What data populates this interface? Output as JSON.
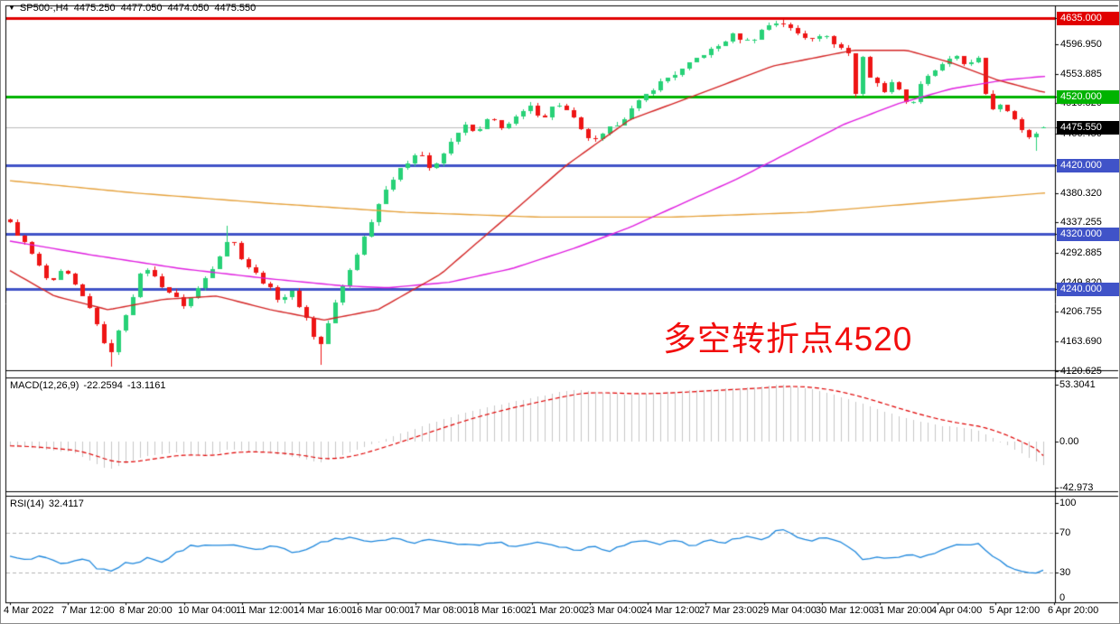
{
  "header": {
    "dropdown_icon": "▼",
    "symbol": "SP500-,H4",
    "open": "4475.250",
    "high": "4477.050",
    "low": "4474.050",
    "close": "4475.550"
  },
  "annotation": {
    "text": "多空转折点4520",
    "color": "#f20d0d"
  },
  "indicators": {
    "macd": {
      "label": "MACD(12,26,9)",
      "value_main": "-22.2594",
      "value_signal": "-13.1161",
      "axis_ticks": [
        {
          "label": "53.3041",
          "value": 53.3041
        },
        {
          "label": "0.00",
          "value": 0
        },
        {
          "label": "-42.973",
          "value": -42.973
        }
      ]
    },
    "rsi": {
      "label": "RSI(14)",
      "value": "32.4117",
      "axis_ticks": [
        {
          "label": "100",
          "value": 100
        },
        {
          "label": "70",
          "value": 70
        },
        {
          "label": "30",
          "value": 30
        },
        {
          "label": "0",
          "value": 0
        }
      ],
      "dashed_levels": [
        70,
        30
      ]
    }
  },
  "price_axis": {
    "ticks": [
      {
        "label": "4596.950",
        "value": 4596.95
      },
      {
        "label": "4553.885",
        "value": 4553.885
      },
      {
        "label": "4510.820",
        "value": 4510.82
      },
      {
        "label": "4466.450",
        "value": 4466.45
      },
      {
        "label": "4380.320",
        "value": 4380.32
      },
      {
        "label": "4337.255",
        "value": 4337.255
      },
      {
        "label": "4292.885",
        "value": 4292.885
      },
      {
        "label": "4249.820",
        "value": 4249.82
      },
      {
        "label": "4206.755",
        "value": 4206.755
      },
      {
        "label": "4163.690",
        "value": 4163.69
      },
      {
        "label": "4120.625",
        "value": 4120.625
      }
    ],
    "badges": [
      {
        "label": "4635.000",
        "value": 4635.0,
        "color": "#e10000"
      },
      {
        "label": "4520.000",
        "value": 4520.0,
        "color": "#00b300"
      },
      {
        "label": "4475.550",
        "value": 4475.55,
        "color": "#000000"
      },
      {
        "label": "4420.000",
        "value": 4420.0,
        "color": "#4053c8"
      },
      {
        "label": "4320.000",
        "value": 4320.0,
        "color": "#4053c8"
      },
      {
        "label": "4240.000",
        "value": 4240.0,
        "color": "#4053c8"
      }
    ]
  },
  "time_axis": {
    "labels": [
      "4 Mar 2022",
      "7 Mar 12:00",
      "8 Mar 20:00",
      "10 Mar 04:00",
      "11 Mar 12:00",
      "14 Mar 16:00",
      "16 Mar 00:00",
      "17 Mar 08:00",
      "18 Mar 16:00",
      "21 Mar 20:00",
      "23 Mar 04:00",
      "24 Mar 12:00",
      "27 Mar 23:00",
      "29 Mar 04:00",
      "30 Mar 12:00",
      "31 Mar 20:00",
      "4 Apr 04:00",
      "5 Apr 12:00",
      "6 Apr 20:00"
    ]
  },
  "chart_data": {
    "type": "candlestick",
    "symbol": "SP500-",
    "timeframe": "H4",
    "n_bars": 144,
    "y_range": [
      4120.625,
      4635.0
    ],
    "current_bar": {
      "open": 4475.25,
      "high": 4477.05,
      "low": 4474.05,
      "close": 4475.55
    },
    "horizontal_lines": [
      {
        "value": 4635.0,
        "color": "#e10000",
        "width": 3
      },
      {
        "value": 4520.0,
        "color": "#00b300",
        "width": 3
      },
      {
        "value": 4420.0,
        "color": "#4053c8",
        "width": 3
      },
      {
        "value": 4320.0,
        "color": "#4053c8",
        "width": 3
      },
      {
        "value": 4240.0,
        "color": "#4053c8",
        "width": 3
      },
      {
        "value": 4475.55,
        "color": "#bbbbbb",
        "width": 1
      }
    ],
    "price_path": [
      [
        0.0,
        4335
      ],
      [
        0.017,
        4300
      ],
      [
        0.039,
        4245
      ],
      [
        0.052,
        4270
      ],
      [
        0.069,
        4230
      ],
      [
        0.082,
        4200
      ],
      [
        0.095,
        4140
      ],
      [
        0.108,
        4190
      ],
      [
        0.13,
        4275
      ],
      [
        0.147,
        4245
      ],
      [
        0.169,
        4215
      ],
      [
        0.191,
        4260
      ],
      [
        0.213,
        4318
      ],
      [
        0.226,
        4280
      ],
      [
        0.243,
        4255
      ],
      [
        0.26,
        4225
      ],
      [
        0.273,
        4235
      ],
      [
        0.286,
        4200
      ],
      [
        0.299,
        4152
      ],
      [
        0.312,
        4210
      ],
      [
        0.325,
        4255
      ],
      [
        0.338,
        4300
      ],
      [
        0.351,
        4345
      ],
      [
        0.364,
        4390
      ],
      [
        0.382,
        4420
      ],
      [
        0.395,
        4445
      ],
      [
        0.408,
        4410
      ],
      [
        0.425,
        4450
      ],
      [
        0.438,
        4480
      ],
      [
        0.451,
        4465
      ],
      [
        0.464,
        4490
      ],
      [
        0.477,
        4475
      ],
      [
        0.49,
        4490
      ],
      [
        0.503,
        4505
      ],
      [
        0.516,
        4490
      ],
      [
        0.529,
        4512
      ],
      [
        0.542,
        4495
      ],
      [
        0.555,
        4465
      ],
      [
        0.568,
        4455
      ],
      [
        0.581,
        4475
      ],
      [
        0.594,
        4490
      ],
      [
        0.607,
        4510
      ],
      [
        0.62,
        4530
      ],
      [
        0.633,
        4545
      ],
      [
        0.651,
        4560
      ],
      [
        0.668,
        4580
      ],
      [
        0.686,
        4595
      ],
      [
        0.699,
        4610
      ],
      [
        0.716,
        4600
      ],
      [
        0.733,
        4625
      ],
      [
        0.746,
        4630
      ],
      [
        0.759,
        4615
      ],
      [
        0.772,
        4605
      ],
      [
        0.785,
        4612
      ],
      [
        0.798,
        4598
      ],
      [
        0.811,
        4585
      ],
      [
        0.818,
        4522
      ],
      [
        0.824,
        4586
      ],
      [
        0.833,
        4545
      ],
      [
        0.846,
        4530
      ],
      [
        0.857,
        4545
      ],
      [
        0.866,
        4515
      ],
      [
        0.872,
        4505
      ],
      [
        0.881,
        4540
      ],
      [
        0.894,
        4555
      ],
      [
        0.904,
        4572
      ],
      [
        0.916,
        4576
      ],
      [
        0.926,
        4565
      ],
      [
        0.936,
        4585
      ],
      [
        0.941,
        4535
      ],
      [
        0.949,
        4500
      ],
      [
        0.956,
        4512
      ],
      [
        0.963,
        4505
      ],
      [
        0.97,
        4495
      ],
      [
        0.977,
        4480
      ],
      [
        0.983,
        4455
      ],
      [
        0.99,
        4465
      ],
      [
        0.996,
        4470
      ],
      [
        1.0,
        4475.55
      ]
    ],
    "wick_spikes": [
      {
        "f": 0.095,
        "low": 4128
      },
      {
        "f": 0.213,
        "high": 4332
      },
      {
        "f": 0.299,
        "low": 4130
      },
      {
        "f": 0.746,
        "high": 4633
      },
      {
        "f": 0.99,
        "low": 4441
      }
    ],
    "moving_averages": [
      {
        "name": "ma-slow-orange",
        "color": "#e6a23c",
        "path": [
          [
            0,
            4398
          ],
          [
            0.122,
            4380
          ],
          [
            0.252,
            4365
          ],
          [
            0.382,
            4352
          ],
          [
            0.512,
            4345
          ],
          [
            0.642,
            4345
          ],
          [
            0.773,
            4352
          ],
          [
            0.903,
            4368
          ],
          [
            1,
            4380
          ]
        ]
      },
      {
        "name": "ma-mid-magenta",
        "color": "#e01fe0",
        "path": [
          [
            0,
            4310
          ],
          [
            0.078,
            4290
          ],
          [
            0.165,
            4270
          ],
          [
            0.252,
            4255
          ],
          [
            0.321,
            4245
          ],
          [
            0.365,
            4242
          ],
          [
            0.425,
            4250
          ],
          [
            0.486,
            4270
          ],
          [
            0.547,
            4300
          ],
          [
            0.6,
            4330
          ],
          [
            0.651,
            4365
          ],
          [
            0.703,
            4400
          ],
          [
            0.755,
            4440
          ],
          [
            0.807,
            4480
          ],
          [
            0.859,
            4510
          ],
          [
            0.911,
            4532
          ],
          [
            0.964,
            4545
          ],
          [
            1,
            4550
          ]
        ]
      },
      {
        "name": "ma-fast-red",
        "color": "#d42525",
        "path": [
          [
            0,
            4267
          ],
          [
            0.043,
            4230
          ],
          [
            0.095,
            4210
          ],
          [
            0.148,
            4225
          ],
          [
            0.2,
            4230
          ],
          [
            0.252,
            4210
          ],
          [
            0.304,
            4195
          ],
          [
            0.356,
            4210
          ],
          [
            0.417,
            4262
          ],
          [
            0.477,
            4340
          ],
          [
            0.538,
            4420
          ],
          [
            0.6,
            4487
          ],
          [
            0.668,
            4525
          ],
          [
            0.738,
            4565
          ],
          [
            0.816,
            4588
          ],
          [
            0.868,
            4588
          ],
          [
            0.911,
            4570
          ],
          [
            0.955,
            4545
          ],
          [
            1,
            4527
          ]
        ]
      }
    ],
    "macd": {
      "hist_path": [
        [
          0,
          -4
        ],
        [
          0.06,
          -10
        ],
        [
          0.095,
          -26
        ],
        [
          0.13,
          -14
        ],
        [
          0.16,
          -10
        ],
        [
          0.19,
          -14
        ],
        [
          0.213,
          -7
        ],
        [
          0.25,
          -11
        ],
        [
          0.28,
          -15
        ],
        [
          0.299,
          -20
        ],
        [
          0.33,
          -10
        ],
        [
          0.35,
          -2
        ],
        [
          0.38,
          8
        ],
        [
          0.41,
          18
        ],
        [
          0.44,
          27
        ],
        [
          0.47,
          34
        ],
        [
          0.5,
          40
        ],
        [
          0.53,
          46
        ],
        [
          0.55,
          49
        ],
        [
          0.57,
          46
        ],
        [
          0.6,
          44
        ],
        [
          0.63,
          46
        ],
        [
          0.66,
          48
        ],
        [
          0.7,
          50
        ],
        [
          0.72,
          51
        ],
        [
          0.746,
          53.3
        ],
        [
          0.77,
          50
        ],
        [
          0.79,
          46
        ],
        [
          0.81,
          40
        ],
        [
          0.823,
          36
        ],
        [
          0.84,
          30
        ],
        [
          0.86,
          24
        ],
        [
          0.88,
          19
        ],
        [
          0.9,
          15
        ],
        [
          0.92,
          13
        ],
        [
          0.936,
          11
        ],
        [
          0.95,
          4
        ],
        [
          0.963,
          -2
        ],
        [
          0.975,
          -9
        ],
        [
          0.99,
          -17
        ],
        [
          1.0,
          -22.26
        ]
      ],
      "final_macd": -22.2594,
      "final_signal": -13.1161,
      "y_max": 53.3041,
      "y_min": -42.973
    },
    "rsi": {
      "path": [
        [
          0,
          46
        ],
        [
          0.012,
          42
        ],
        [
          0.03,
          46
        ],
        [
          0.045,
          40
        ],
        [
          0.06,
          41
        ],
        [
          0.075,
          43
        ],
        [
          0.085,
          34
        ],
        [
          0.1,
          31
        ],
        [
          0.11,
          40
        ],
        [
          0.122,
          37
        ],
        [
          0.133,
          46
        ],
        [
          0.145,
          39
        ],
        [
          0.16,
          49
        ],
        [
          0.175,
          57
        ],
        [
          0.21,
          58
        ],
        [
          0.24,
          54
        ],
        [
          0.26,
          57
        ],
        [
          0.275,
          49
        ],
        [
          0.29,
          55
        ],
        [
          0.305,
          62
        ],
        [
          0.33,
          66
        ],
        [
          0.35,
          60
        ],
        [
          0.37,
          64
        ],
        [
          0.39,
          60
        ],
        [
          0.41,
          63
        ],
        [
          0.43,
          60
        ],
        [
          0.45,
          57
        ],
        [
          0.47,
          61
        ],
        [
          0.49,
          56
        ],
        [
          0.51,
          61
        ],
        [
          0.53,
          57
        ],
        [
          0.55,
          52
        ],
        [
          0.565,
          57
        ],
        [
          0.58,
          52
        ],
        [
          0.6,
          60
        ],
        [
          0.615,
          63
        ],
        [
          0.63,
          59
        ],
        [
          0.645,
          63
        ],
        [
          0.66,
          56
        ],
        [
          0.675,
          63
        ],
        [
          0.69,
          60
        ],
        [
          0.71,
          66
        ],
        [
          0.73,
          64
        ],
        [
          0.746,
          75
        ],
        [
          0.76,
          66
        ],
        [
          0.775,
          62
        ],
        [
          0.79,
          65
        ],
        [
          0.805,
          60
        ],
        [
          0.818,
          50
        ],
        [
          0.825,
          42
        ],
        [
          0.84,
          46
        ],
        [
          0.855,
          44
        ],
        [
          0.87,
          48
        ],
        [
          0.885,
          45
        ],
        [
          0.9,
          52
        ],
        [
          0.915,
          57
        ],
        [
          0.93,
          57
        ],
        [
          0.937,
          60
        ],
        [
          0.95,
          48
        ],
        [
          0.96,
          40
        ],
        [
          0.97,
          35
        ],
        [
          0.98,
          31
        ],
        [
          0.99,
          29
        ],
        [
          1.0,
          32.41
        ]
      ],
      "final_value": 32.4117
    },
    "colors": {
      "up": "#28d177",
      "down": "#ee1515",
      "macd_hist": "#c8c8c8",
      "macd_signal": "#e00000",
      "rsi_line": "#1d87dd",
      "level_dash": "#b3b3b3",
      "bid_line": "#bbbbbb"
    }
  }
}
